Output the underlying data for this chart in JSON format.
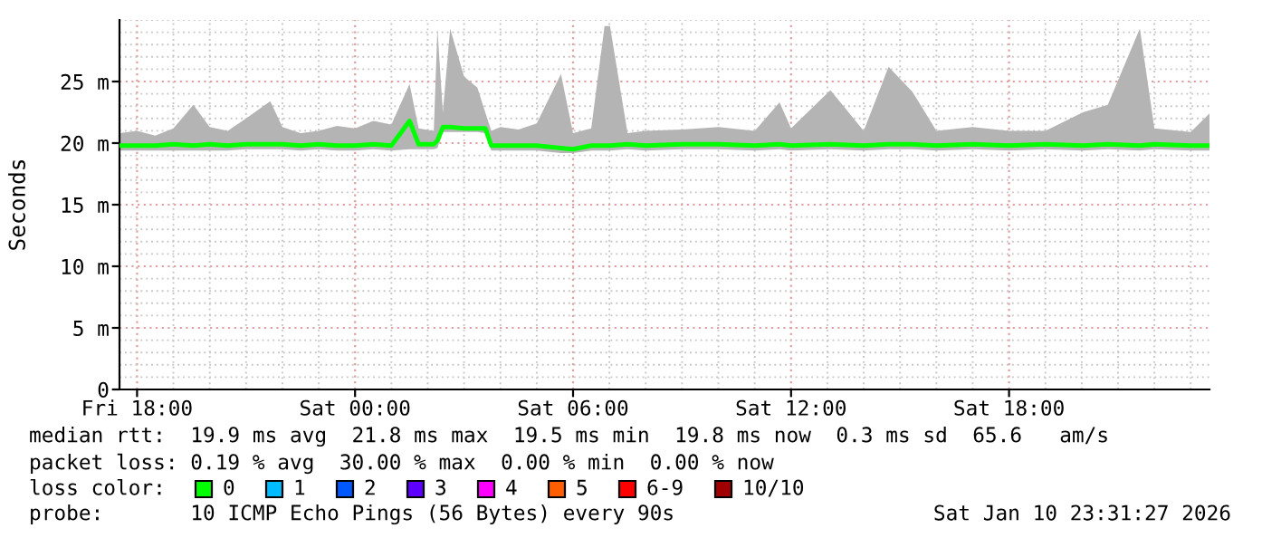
{
  "chart_data": {
    "type": "line",
    "ylabel": "Seconds",
    "legend_title": "loss color:",
    "legend": "bottom left",
    "grid": true,
    "marker": "none",
    "line_style": "solid",
    "xlim": [
      "2026-01-09T17:31",
      "2026-01-10T23:31"
    ],
    "xticks": [
      {
        "value": "2026-01-09T18:00",
        "label": "Fri 18:00"
      },
      {
        "value": "2026-01-10T00:00",
        "label": "Sat 00:00"
      },
      {
        "value": "2026-01-10T06:00",
        "label": "Sat 06:00"
      },
      {
        "value": "2026-01-10T12:00",
        "label": "Sat 12:00"
      },
      {
        "value": "2026-01-10T18:00",
        "label": "Sat 18:00"
      }
    ],
    "ylim": [
      0,
      30
    ],
    "yticks": [
      0,
      {
        "value": 5,
        "label": "5 m"
      },
      {
        "value": 10,
        "label": "10 m"
      },
      {
        "value": 15,
        "label": "15 m"
      },
      {
        "value": 20,
        "label": "20 m"
      },
      {
        "value": 25,
        "label": "25 m"
      }
    ],
    "x": [
      "2026-01-09T17:31",
      "2026-01-09T18:00",
      "2026-01-09T18:30",
      "2026-01-09T19:00",
      "2026-01-09T19:33",
      "2026-01-09T20:00",
      "2026-01-09T20:30",
      "2026-01-09T21:00",
      "2026-01-09T21:40",
      "2026-01-09T22:00",
      "2026-01-09T22:30",
      "2026-01-09T23:00",
      "2026-01-09T23:30",
      "2026-01-10T00:00",
      "2026-01-10T00:30",
      "2026-01-10T01:00",
      "2026-01-10T01:30",
      "2026-01-10T01:45",
      "2026-01-10T02:10",
      "2026-01-10T02:16",
      "2026-01-10T02:25",
      "2026-01-10T02:37",
      "2026-01-10T03:00",
      "2026-01-10T03:22",
      "2026-01-10T03:35",
      "2026-01-10T03:45",
      "2026-01-10T04:00",
      "2026-01-10T04:30",
      "2026-01-10T05:00",
      "2026-01-10T05:40",
      "2026-01-10T06:00",
      "2026-01-10T06:30",
      "2026-01-10T06:52",
      "2026-01-10T07:01",
      "2026-01-10T07:30",
      "2026-01-10T08:00",
      "2026-01-10T09:00",
      "2026-01-10T10:00",
      "2026-01-10T11:00",
      "2026-01-10T11:41",
      "2026-01-10T12:00",
      "2026-01-10T13:05",
      "2026-01-10T14:00",
      "2026-01-10T14:41",
      "2026-01-10T15:20",
      "2026-01-10T16:00",
      "2026-01-10T17:00",
      "2026-01-10T18:00",
      "2026-01-10T19:00",
      "2026-01-10T20:02",
      "2026-01-10T20:43",
      "2026-01-10T21:36",
      "2026-01-10T22:00",
      "2026-01-10T23:00",
      "2026-01-10T23:31"
    ],
    "series": [
      {
        "name": "0",
        "color": "#00ff00",
        "values": [
          19.8,
          19.8,
          19.8,
          19.9,
          19.8,
          19.9,
          19.8,
          19.9,
          19.9,
          19.9,
          19.8,
          19.9,
          19.8,
          19.8,
          19.9,
          19.8,
          21.8,
          19.9,
          19.9,
          20.2,
          21.3,
          21.3,
          21.2,
          21.2,
          21.2,
          19.8,
          19.8,
          19.8,
          19.8,
          19.6,
          19.5,
          19.8,
          19.8,
          19.8,
          19.9,
          19.8,
          19.9,
          19.9,
          19.8,
          19.9,
          19.8,
          19.9,
          19.8,
          19.9,
          19.9,
          19.8,
          19.9,
          19.8,
          19.9,
          19.8,
          19.9,
          19.8,
          19.9,
          19.8,
          19.8
        ],
        "lower": [
          19.4,
          19.4,
          19.4,
          19.4,
          19.4,
          19.4,
          19.4,
          19.5,
          19.5,
          19.5,
          19.4,
          19.5,
          19.4,
          19.4,
          19.5,
          19.4,
          19.5,
          19.5,
          19.5,
          19.6,
          20.9,
          20.9,
          20.9,
          20.9,
          20.8,
          19.4,
          19.4,
          19.4,
          19.4,
          19.2,
          19.2,
          19.4,
          19.4,
          19.4,
          19.5,
          19.4,
          19.5,
          19.5,
          19.4,
          19.5,
          19.4,
          19.5,
          19.4,
          19.5,
          19.5,
          19.4,
          19.5,
          19.4,
          19.5,
          19.4,
          19.5,
          19.4,
          19.5,
          19.4,
          19.4
        ],
        "upper": [
          20.8,
          21.0,
          20.6,
          21.2,
          23.1,
          21.3,
          21.0,
          22.0,
          23.4,
          21.3,
          20.8,
          21.0,
          21.4,
          21.2,
          21.8,
          21.5,
          24.8,
          21.2,
          21.0,
          29.3,
          22.5,
          29.3,
          25.4,
          24.5,
          22.5,
          21.0,
          21.3,
          21.1,
          21.6,
          25.6,
          20.8,
          21.2,
          29.5,
          29.5,
          20.8,
          21.0,
          21.1,
          21.3,
          21.0,
          23.3,
          21.2,
          24.3,
          21.0,
          26.2,
          24.2,
          21.0,
          21.3,
          21.0,
          21.0,
          22.5,
          23.1,
          29.3,
          21.2,
          20.9,
          22.4
        ]
      },
      {
        "name": "1",
        "color": "#00bbff",
        "values": [
          null,
          null,
          null,
          null,
          null,
          null,
          null,
          null,
          null,
          null,
          null,
          null,
          null,
          null,
          null,
          null,
          null,
          null,
          null,
          null,
          null,
          null,
          null,
          null,
          null,
          null,
          null,
          null,
          null,
          null,
          null,
          null,
          null,
          null,
          null,
          null,
          null,
          null,
          null,
          null,
          null,
          null,
          null,
          null,
          null,
          null,
          null,
          null,
          null,
          null,
          null,
          null,
          null,
          null,
          null
        ]
      },
      {
        "name": "2",
        "color": "#0059ff",
        "values": [
          null,
          null,
          null,
          null,
          null,
          null,
          null,
          null,
          null,
          null,
          null,
          null,
          null,
          null,
          null,
          null,
          null,
          null,
          null,
          null,
          null,
          null,
          null,
          null,
          null,
          null,
          null,
          null,
          null,
          null,
          null,
          null,
          null,
          null,
          null,
          null,
          null,
          null,
          null,
          null,
          null,
          null,
          null,
          null,
          null,
          null,
          null,
          null,
          null,
          null,
          null,
          null,
          null,
          null,
          null
        ]
      },
      {
        "name": "3",
        "color": "#5e00ff",
        "values": [
          null,
          null,
          null,
          null,
          null,
          null,
          null,
          null,
          null,
          null,
          null,
          null,
          null,
          null,
          null,
          null,
          null,
          null,
          null,
          null,
          null,
          null,
          null,
          null,
          null,
          null,
          null,
          null,
          null,
          null,
          null,
          null,
          null,
          null,
          null,
          null,
          null,
          null,
          null,
          null,
          null,
          null,
          null,
          null,
          null,
          null,
          null,
          null,
          null,
          null,
          null,
          null,
          null,
          null,
          null
        ]
      },
      {
        "name": "4",
        "color": "#ff00fe",
        "values": [
          null,
          null,
          null,
          null,
          null,
          null,
          null,
          null,
          null,
          null,
          null,
          null,
          null,
          null,
          null,
          null,
          null,
          null,
          null,
          null,
          null,
          null,
          null,
          null,
          null,
          null,
          null,
          null,
          null,
          null,
          null,
          null,
          null,
          null,
          null,
          null,
          null,
          null,
          null,
          null,
          null,
          null,
          null,
          null,
          null,
          null,
          null,
          null,
          null,
          null,
          null,
          null,
          null,
          null,
          null
        ]
      },
      {
        "name": "5",
        "color": "#ff5e00",
        "values": [
          null,
          null,
          null,
          null,
          null,
          null,
          null,
          null,
          null,
          null,
          null,
          null,
          null,
          null,
          null,
          null,
          null,
          null,
          null,
          null,
          null,
          null,
          null,
          null,
          null,
          null,
          null,
          null,
          null,
          null,
          null,
          null,
          null,
          null,
          null,
          null,
          null,
          null,
          null,
          null,
          null,
          null,
          null,
          null,
          null,
          null,
          null,
          null,
          null,
          null,
          null,
          null,
          null,
          null,
          null
        ]
      },
      {
        "name": "6-9",
        "color": "#ff0000",
        "values": [
          null,
          null,
          null,
          null,
          null,
          null,
          null,
          null,
          null,
          null,
          null,
          null,
          null,
          null,
          null,
          null,
          null,
          null,
          null,
          null,
          null,
          null,
          null,
          null,
          null,
          null,
          null,
          null,
          null,
          null,
          null,
          null,
          null,
          null,
          null,
          null,
          null,
          null,
          null,
          null,
          null,
          null,
          null,
          null,
          null,
          null,
          null,
          null,
          null,
          null,
          null,
          null,
          null,
          null,
          null
        ]
      },
      {
        "name": "10/10",
        "color": "#a10000",
        "values": [
          null,
          null,
          null,
          null,
          null,
          null,
          null,
          null,
          null,
          null,
          null,
          null,
          null,
          null,
          null,
          null,
          null,
          null,
          null,
          null,
          null,
          null,
          null,
          null,
          null,
          null,
          null,
          null,
          null,
          null,
          null,
          null,
          null,
          null,
          null,
          null,
          null,
          null,
          null,
          null,
          null,
          null,
          null,
          null,
          null,
          null,
          null,
          null,
          null,
          null,
          null,
          null,
          null,
          null,
          null
        ]
      }
    ],
    "annotations": [
      "median rtt:  19.9 ms avg  21.8 ms max  19.5 ms min  19.8 ms now  0.3 ms sd  65.6   am/s",
      "packet loss: 0.19 % avg  30.00 % max  0.00 % min  0.00 % now",
      "probe:       10 ICMP Echo Pings (56 Bytes) every 90s",
      "Sat Jan 10 23:31:27 2026"
    ]
  }
}
